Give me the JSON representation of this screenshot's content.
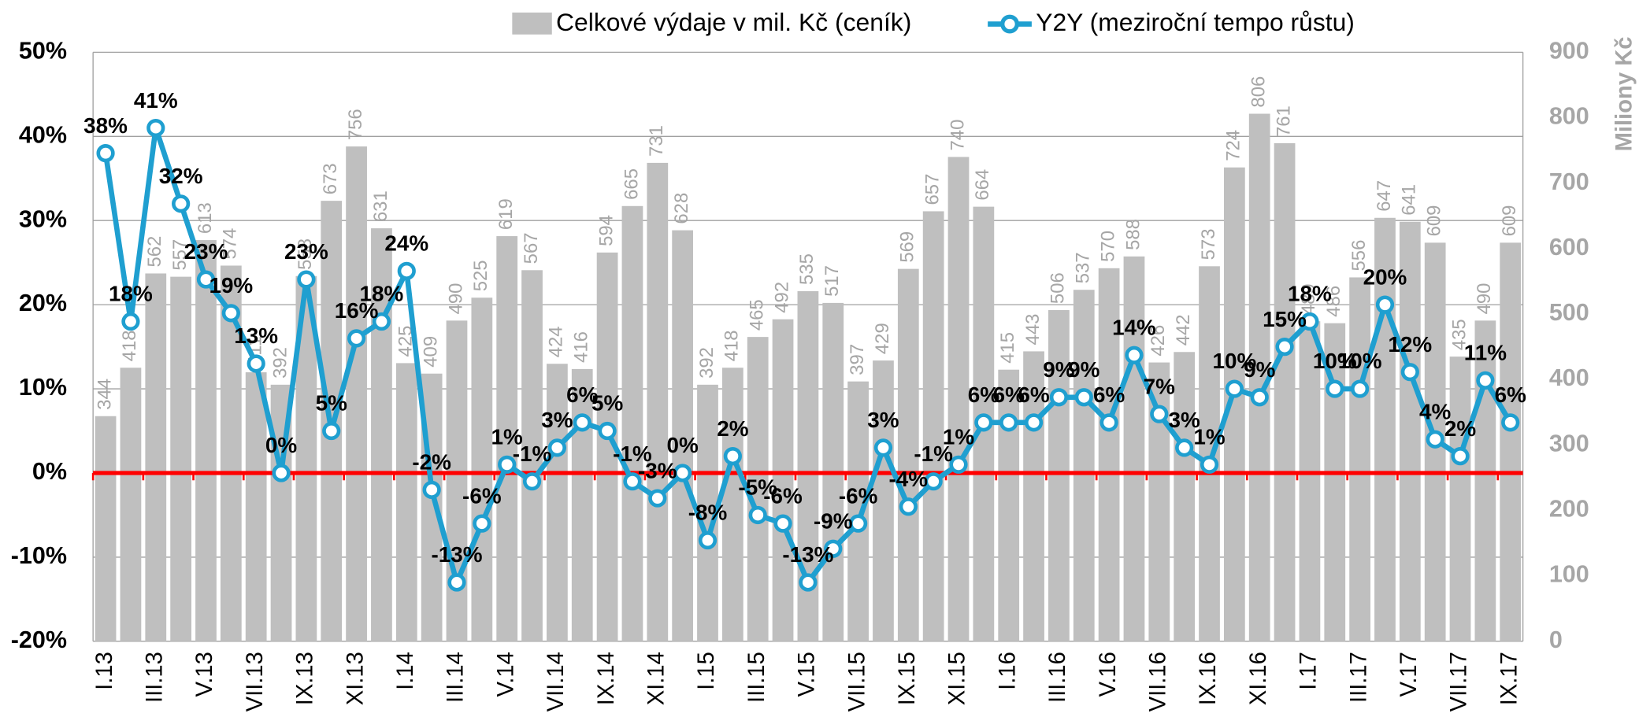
{
  "chart_data": {
    "type": "combo",
    "legend": "top",
    "grid": true,
    "categories": [
      "I.13",
      null,
      "III.13",
      null,
      "V.13",
      null,
      "VII.13",
      null,
      "IX.13",
      null,
      "XI.13",
      null,
      "I.14",
      null,
      "III.14",
      null,
      "V.14",
      null,
      "VII.14",
      null,
      "IX.14",
      null,
      "XI.14",
      null,
      "I.15",
      null,
      "III.15",
      null,
      "V.15",
      null,
      "VII.15",
      null,
      "IX.15",
      null,
      "XI.15",
      null,
      "I.16",
      null,
      "III.16",
      null,
      "V.16",
      null,
      "VII.16",
      null,
      "IX.16",
      null,
      "XI.16",
      null,
      "I.17",
      null,
      "III.17",
      null,
      "V.17",
      null,
      "VII.17",
      null,
      "IX.17"
    ],
    "series": [
      {
        "name": "Celkové výdaje v mil. Kč (ceník)",
        "type": "bar",
        "axis": "y2",
        "color": "#bfbfbf",
        "values": [
          344,
          418,
          562,
          557,
          613,
          574,
          411,
          392,
          558,
          673,
          756,
          631,
          425,
          409,
          490,
          525,
          619,
          567,
          424,
          416,
          594,
          665,
          731,
          628,
          392,
          418,
          465,
          492,
          535,
          517,
          397,
          429,
          569,
          657,
          740,
          664,
          415,
          443,
          506,
          537,
          570,
          588,
          426,
          442,
          573,
          724,
          806,
          761,
          489,
          486,
          556,
          647,
          641,
          609,
          435,
          490,
          609
        ]
      },
      {
        "name": "Y2Y (meziroční tempo růstu)",
        "type": "line",
        "color": "#1f9fd0",
        "values": [
          38,
          18,
          41,
          32,
          23,
          19,
          13,
          0,
          23,
          5,
          16,
          18,
          24,
          -2,
          -13,
          -6,
          1,
          -1,
          3,
          6,
          5,
          -1,
          -3,
          0,
          -8,
          2,
          -5,
          -6,
          -13,
          -9,
          -6,
          3,
          -4,
          -1,
          1,
          6,
          6,
          6,
          9,
          9,
          6,
          14,
          7,
          3,
          1,
          10,
          9,
          15,
          18,
          10,
          10,
          20,
          12,
          4,
          2,
          11,
          6
        ],
        "value_labels": [
          "38%",
          "18%",
          "41%",
          "32%",
          "23%",
          "19%",
          "13%",
          "0%",
          "23%",
          "5%",
          "16%",
          "18%",
          "24%",
          "-2%",
          "-13%",
          "-6%",
          "1%",
          "-1%",
          "3%",
          "6%",
          "5%",
          "-1%",
          "-3%",
          "0%",
          "-8%",
          "2%",
          "-5%",
          "-6%",
          "-13%",
          "-9%",
          "-6%",
          "3%",
          "-4%",
          "-1%",
          "1%",
          "6%",
          "6%",
          "6%",
          "9%",
          "9%",
          "6%",
          "14%",
          "7%",
          "3%",
          "1%",
          "10%",
          "9%",
          "15%",
          "18%",
          "10%",
          "10%",
          "20%",
          "12%",
          "4%",
          "2%",
          "11%",
          "6%"
        ]
      }
    ],
    "ylim": [
      -20,
      50
    ],
    "yticks": [
      {
        "value": -20,
        "label": "-20%"
      },
      {
        "value": -10,
        "label": "-10%"
      },
      {
        "value": 0,
        "label": "0%"
      },
      {
        "value": 10,
        "label": "10%"
      },
      {
        "value": 20,
        "label": "20%"
      },
      {
        "value": 30,
        "label": "30%"
      },
      {
        "value": 40,
        "label": "40%"
      },
      {
        "value": 50,
        "label": "50%"
      }
    ],
    "y2lim": [
      0,
      900
    ],
    "y2ticks": [
      0,
      100,
      200,
      300,
      400,
      500,
      600,
      700,
      800,
      900
    ],
    "y2label": "Miliony Kč"
  }
}
